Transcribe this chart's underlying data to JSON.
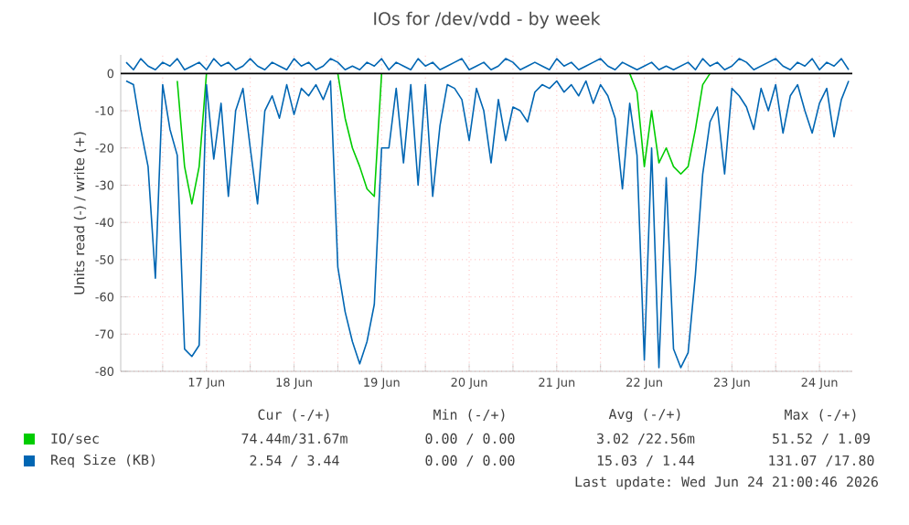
{
  "chart_data": {
    "type": "line",
    "title": "IOs for /dev/vdd - by week",
    "ylabel": "Units read (-) / write (+)",
    "xlim": [
      "2026-06-16T12:30",
      "2026-06-24T21:00"
    ],
    "ylim": [
      -80,
      5
    ],
    "yticks": [
      -80,
      -70,
      -60,
      -50,
      -40,
      -30,
      -20,
      -10,
      0
    ],
    "xticks": [
      {
        "value": "2026-06-17T00:00",
        "label": null
      },
      {
        "value": "2026-06-17T12:00",
        "label": "17 Jun"
      },
      {
        "value": "2026-06-18T00:00",
        "label": null
      },
      {
        "value": "2026-06-18T12:00",
        "label": "18 Jun"
      },
      {
        "value": "2026-06-19T00:00",
        "label": null
      },
      {
        "value": "2026-06-19T12:00",
        "label": "19 Jun"
      },
      {
        "value": "2026-06-20T00:00",
        "label": null
      },
      {
        "value": "2026-06-20T12:00",
        "label": "20 Jun"
      },
      {
        "value": "2026-06-21T00:00",
        "label": null
      },
      {
        "value": "2026-06-21T12:00",
        "label": "21 Jun"
      },
      {
        "value": "2026-06-22T00:00",
        "label": null
      },
      {
        "value": "2026-06-22T12:00",
        "label": "22 Jun"
      },
      {
        "value": "2026-06-23T00:00",
        "label": null
      },
      {
        "value": "2026-06-23T12:00",
        "label": "23 Jun"
      },
      {
        "value": "2026-06-24T00:00",
        "label": null
      },
      {
        "value": "2026-06-24T12:00",
        "label": "24 Jun"
      }
    ],
    "grid": true,
    "legend": "bottom",
    "ref_lines": [
      {
        "axis": "y",
        "value": 0,
        "color": "#000000"
      }
    ],
    "x": [
      "2026-06-16T14:00",
      "2026-06-16T16:00",
      "2026-06-16T18:00",
      "2026-06-16T20:00",
      "2026-06-16T22:00",
      "2026-06-17T00:00",
      "2026-06-17T02:00",
      "2026-06-17T04:00",
      "2026-06-17T06:00",
      "2026-06-17T08:00",
      "2026-06-17T10:00",
      "2026-06-17T12:00",
      "2026-06-17T14:00",
      "2026-06-17T16:00",
      "2026-06-17T18:00",
      "2026-06-17T20:00",
      "2026-06-17T22:00",
      "2026-06-18T00:00",
      "2026-06-18T02:00",
      "2026-06-18T04:00",
      "2026-06-18T06:00",
      "2026-06-18T08:00",
      "2026-06-18T10:00",
      "2026-06-18T12:00",
      "2026-06-18T14:00",
      "2026-06-18T16:00",
      "2026-06-18T18:00",
      "2026-06-18T20:00",
      "2026-06-18T22:00",
      "2026-06-19T00:00",
      "2026-06-19T02:00",
      "2026-06-19T04:00",
      "2026-06-19T06:00",
      "2026-06-19T08:00",
      "2026-06-19T10:00",
      "2026-06-19T12:00",
      "2026-06-19T14:00",
      "2026-06-19T16:00",
      "2026-06-19T18:00",
      "2026-06-19T20:00",
      "2026-06-19T22:00",
      "2026-06-20T00:00",
      "2026-06-20T02:00",
      "2026-06-20T04:00",
      "2026-06-20T06:00",
      "2026-06-20T08:00",
      "2026-06-20T10:00",
      "2026-06-20T12:00",
      "2026-06-20T14:00",
      "2026-06-20T16:00",
      "2026-06-20T18:00",
      "2026-06-20T20:00",
      "2026-06-20T22:00",
      "2026-06-21T00:00",
      "2026-06-21T02:00",
      "2026-06-21T04:00",
      "2026-06-21T06:00",
      "2026-06-21T08:00",
      "2026-06-21T10:00",
      "2026-06-21T12:00",
      "2026-06-21T14:00",
      "2026-06-21T16:00",
      "2026-06-21T18:00",
      "2026-06-21T20:00",
      "2026-06-21T22:00",
      "2026-06-22T00:00",
      "2026-06-22T02:00",
      "2026-06-22T04:00",
      "2026-06-22T06:00",
      "2026-06-22T08:00",
      "2026-06-22T10:00",
      "2026-06-22T12:00",
      "2026-06-22T14:00",
      "2026-06-22T16:00",
      "2026-06-22T18:00",
      "2026-06-22T20:00",
      "2026-06-22T22:00",
      "2026-06-23T00:00",
      "2026-06-23T02:00",
      "2026-06-23T04:00",
      "2026-06-23T06:00",
      "2026-06-23T08:00",
      "2026-06-23T10:00",
      "2026-06-23T12:00",
      "2026-06-23T14:00",
      "2026-06-23T16:00",
      "2026-06-23T18:00",
      "2026-06-23T20:00",
      "2026-06-23T22:00",
      "2026-06-24T00:00",
      "2026-06-24T02:00",
      "2026-06-24T04:00",
      "2026-06-24T06:00",
      "2026-06-24T08:00",
      "2026-06-24T10:00",
      "2026-06-24T12:00",
      "2026-06-24T14:00",
      "2026-06-24T16:00",
      "2026-06-24T18:00",
      "2026-06-24T20:00"
    ],
    "series": [
      {
        "name": "IO/sec",
        "color": "#00cc00",
        "values": [
          null,
          null,
          null,
          null,
          null,
          null,
          null,
          -2,
          -25,
          -35,
          -25,
          0,
          null,
          null,
          null,
          null,
          null,
          null,
          null,
          null,
          null,
          null,
          null,
          null,
          null,
          null,
          null,
          null,
          null,
          0,
          -12,
          -20,
          -25,
          -31,
          -33,
          0,
          null,
          null,
          null,
          null,
          null,
          null,
          null,
          null,
          null,
          null,
          null,
          null,
          null,
          null,
          null,
          null,
          null,
          null,
          null,
          null,
          null,
          null,
          null,
          null,
          null,
          null,
          null,
          null,
          null,
          null,
          null,
          null,
          null,
          0,
          -5,
          -25,
          -10,
          -24,
          -20,
          -25,
          -27,
          -25,
          -15,
          -3,
          0,
          null,
          null,
          null,
          null,
          null,
          null,
          null,
          null,
          null,
          null,
          null,
          null,
          null,
          null,
          null,
          null,
          null,
          null,
          null
        ]
      },
      {
        "name": "Req Size (KB)",
        "color": "#0066b3",
        "values": [
          -2,
          -3,
          -15,
          -25,
          -55,
          -3,
          -15,
          -22,
          -74,
          -76,
          -73,
          -3,
          -23,
          -8,
          -33,
          -10,
          -4,
          -20,
          -35,
          -10,
          -6,
          -12,
          -3,
          -11,
          -4,
          -6,
          -3,
          -7,
          -2,
          -52,
          -64,
          -72,
          -78,
          -72,
          -62,
          -20,
          -20,
          -4,
          -24,
          -3,
          -30,
          -3,
          -33,
          -14,
          -3,
          -4,
          -7,
          -18,
          -4,
          -10,
          -24,
          -7,
          -18,
          -9,
          -10,
          -13,
          -5,
          -3,
          -4,
          -2,
          -5,
          -3,
          -6,
          -2,
          -8,
          -3,
          -6,
          -12,
          -31,
          -8,
          -22,
          -77,
          -20,
          -79,
          -28,
          -74,
          -79,
          -75,
          -54,
          -27,
          -13,
          -9,
          -27,
          -4,
          -6,
          -9,
          -15,
          -4,
          -10,
          -3,
          -16,
          -6,
          -3,
          -10,
          -16,
          -8,
          -4,
          -17,
          -7,
          -2
        ]
      },
      {
        "color": "#0066b3",
        "values": [
          3,
          1,
          4,
          2,
          1,
          3,
          2,
          4,
          1,
          2,
          3,
          1,
          4,
          2,
          3,
          1,
          2,
          4,
          2,
          1,
          3,
          2,
          1,
          4,
          2,
          3,
          1,
          2,
          4,
          3,
          1,
          2,
          1,
          3,
          2,
          4,
          1,
          3,
          2,
          1,
          4,
          2,
          3,
          1,
          2,
          3,
          4,
          1,
          2,
          3,
          1,
          2,
          4,
          3,
          1,
          2,
          3,
          2,
          1,
          4,
          2,
          3,
          1,
          2,
          3,
          4,
          2,
          1,
          3,
          2,
          1,
          2,
          3,
          1,
          2,
          1,
          2,
          3,
          1,
          4,
          2,
          3,
          1,
          2,
          4,
          3,
          1,
          2,
          3,
          4,
          2,
          1,
          3,
          2,
          4,
          1,
          3,
          2,
          4,
          1
        ]
      }
    ],
    "annotations": [
      "Cur (-/+)",
      "Min (-/+)",
      "Avg (-/+)",
      "Max (-/+)",
      "74.44m/31.67m",
      "0.00 / 0.00",
      "3.02 /22.56m",
      "51.52 / 1.09",
      "2.54 / 3.44",
      "0.00 / 0.00",
      "15.03 / 1.44",
      "131.07 /17.80",
      "Last update: Wed Jun 24 21:00:46 2026"
    ]
  }
}
